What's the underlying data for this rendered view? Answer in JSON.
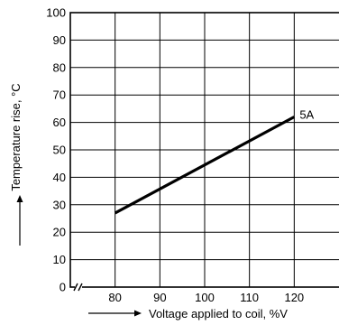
{
  "chart_data": {
    "type": "line",
    "xlabel": "Voltage applied to coil, %V",
    "ylabel": "Temperature rise, °C",
    "xlim": [
      70,
      130
    ],
    "ylim": [
      0,
      100
    ],
    "x_ticks": [
      80,
      90,
      100,
      110,
      120
    ],
    "y_ticks": [
      0,
      10,
      20,
      30,
      40,
      50,
      60,
      70,
      80,
      90,
      100
    ],
    "grid": true,
    "axis_break": true,
    "series": [
      {
        "label": "5A",
        "x": [
          80,
          120
        ],
        "y": [
          27,
          62
        ]
      }
    ]
  }
}
